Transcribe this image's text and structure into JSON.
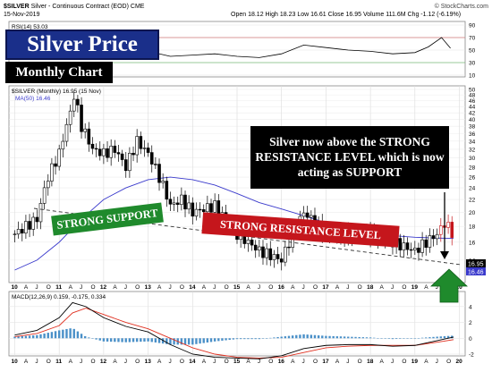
{
  "header": {
    "symbol": "$SILVER",
    "description": "Silver - Continuous Contract (EOD)",
    "exchange": "CME",
    "date": "15-Nov-2019",
    "open": "Open 18.12",
    "high": "High 18.23",
    "low": "Low 16.61",
    "close": "Close 16.95",
    "volume": "Volume 111.6M",
    "chg": "Chg -1.12 (-6.19%)",
    "copyright": "© StockCharts.com"
  },
  "overlays": {
    "title": "Silver Price",
    "subtitle": "Monthly Chart",
    "note": "Silver now above the STRONG RESISTANCE LEVEL which is now acting as SUPPORT",
    "support_label": "STRONG SUPPORT",
    "resistance_label": "STRONG RESISTANCE LEVEL"
  },
  "panels": {
    "rsi_label": "RSI(14) 53.03",
    "price_label": "$SILVER (Monthly) 16.95 (15 Nov)",
    "ma_label": "MA(50) 16.46",
    "macd_label": "MACD(12,26,9) 0.159, -0.175, 0.334",
    "last_price_badge": "16.95",
    "ma_badge": "16.46"
  },
  "colors": {
    "price_bar": "#000000",
    "ma_line": "#3a3acc",
    "support_box": "#1f8a2c",
    "resistance_box": "#c5161c",
    "macd_line": "#000000",
    "signal_line": "#e03020",
    "histogram": "#4a90c8",
    "arrow": "#1f8a2c"
  },
  "chart_data": [
    {
      "type": "line",
      "title": "RSI(14) 53.03",
      "ylim": [
        10,
        90
      ],
      "yticks": [
        10,
        30,
        50,
        70,
        90
      ],
      "x": [
        2010.0,
        2010.5,
        2011.0,
        2011.3,
        2011.6,
        2012.0,
        2012.5,
        2013.0,
        2013.5,
        2014.0,
        2014.5,
        2015.0,
        2015.5,
        2016.0,
        2016.5,
        2017.0,
        2017.5,
        2018.0,
        2018.5,
        2019.0,
        2019.3,
        2019.6,
        2019.8
      ],
      "series": [
        {
          "name": "RSI(14)",
          "values": [
            63,
            66,
            74,
            80,
            70,
            60,
            55,
            48,
            40,
            42,
            44,
            40,
            38,
            44,
            58,
            54,
            50,
            48,
            44,
            46,
            55,
            70,
            53
          ]
        }
      ]
    },
    {
      "type": "candlestick",
      "title": "$SILVER (Monthly) 16.95 (15 Nov)",
      "ylim": [
        12,
        50
      ],
      "log_scale": true,
      "yticks": [
        14,
        16,
        18,
        20,
        22,
        24,
        26,
        28,
        30,
        32,
        34,
        36,
        38,
        40,
        42,
        44,
        46,
        48,
        50
      ],
      "xticks": [
        "10",
        "A",
        "J",
        "O",
        "11",
        "A",
        "J",
        "O",
        "12",
        "A",
        "J",
        "O",
        "13",
        "A",
        "J",
        "O",
        "14",
        "A",
        "J",
        "O",
        "15",
        "A",
        "J",
        "O",
        "16",
        "A",
        "J",
        "O",
        "17",
        "A",
        "J",
        "O",
        "18",
        "A",
        "J",
        "O",
        "19",
        "A",
        "J",
        "O",
        "20"
      ],
      "x_years": [
        2010,
        2011,
        2012,
        2013,
        2014,
        2015,
        2016,
        2017,
        2018,
        2019,
        2020
      ],
      "series": [
        {
          "name": "close",
          "x": [
            2010.0,
            2010.25,
            2010.5,
            2010.75,
            2011.0,
            2011.25,
            2011.33,
            2011.5,
            2011.75,
            2012.0,
            2012.25,
            2012.5,
            2012.75,
            2013.0,
            2013.25,
            2013.5,
            2013.75,
            2014.0,
            2014.5,
            2015.0,
            2015.5,
            2016.0,
            2016.5,
            2017.0,
            2017.5,
            2018.0,
            2018.5,
            2019.0,
            2019.5,
            2019.67,
            2019.87
          ],
          "values": [
            17,
            18,
            19,
            26,
            31,
            42,
            48,
            38,
            32,
            31,
            32,
            28,
            34,
            31,
            26,
            21,
            22,
            20,
            21,
            17,
            15,
            14,
            20,
            17,
            17,
            17,
            16,
            15,
            17,
            18.5,
            16.95
          ]
        },
        {
          "name": "MA(50)",
          "x": [
            2010.0,
            2010.5,
            2011.0,
            2011.5,
            2012.0,
            2012.5,
            2013.0,
            2013.5,
            2014.0,
            2014.5,
            2015.0,
            2015.5,
            2016.0,
            2016.5,
            2017.0,
            2017.5,
            2018.0,
            2018.5,
            2019.0,
            2019.5,
            2019.87
          ],
          "values": [
            13,
            14,
            16,
            19,
            22,
            24,
            25.5,
            26,
            25.5,
            24.5,
            23,
            21.5,
            20.5,
            19.5,
            18.5,
            17.8,
            17.2,
            16.8,
            16.6,
            16.5,
            16.46
          ]
        }
      ],
      "annotations": [
        "Silver now above the STRONG RESISTANCE LEVEL which is now acting as SUPPORT",
        "STRONG SUPPORT",
        "STRONG RESISTANCE LEVEL"
      ]
    },
    {
      "type": "line",
      "title": "MACD(12,26,9) 0.159, -0.175, 0.334",
      "ylim": [
        -2,
        5
      ],
      "yticks": [
        -2,
        0,
        2,
        4
      ],
      "x": [
        2010.0,
        2010.5,
        2011.0,
        2011.3,
        2011.6,
        2012.0,
        2012.5,
        2013.0,
        2013.5,
        2014.0,
        2014.5,
        2015.0,
        2015.5,
        2016.0,
        2016.5,
        2017.0,
        2017.5,
        2018.0,
        2018.5,
        2019.0,
        2019.5,
        2019.87
      ],
      "series": [
        {
          "name": "MACD",
          "values": [
            0.4,
            1.0,
            2.6,
            4.5,
            4.0,
            2.6,
            1.5,
            0.8,
            -0.8,
            -2.0,
            -2.4,
            -2.5,
            -2.6,
            -2.2,
            -1.3,
            -0.9,
            -0.8,
            -0.8,
            -1.0,
            -0.9,
            -0.3,
            0.159
          ]
        },
        {
          "name": "Signal",
          "values": [
            0.2,
            0.6,
            1.6,
            3.2,
            3.8,
            3.0,
            2.0,
            1.2,
            0.0,
            -1.2,
            -2.0,
            -2.4,
            -2.5,
            -2.4,
            -1.8,
            -1.2,
            -1.0,
            -0.9,
            -0.9,
            -0.9,
            -0.5,
            -0.175
          ]
        },
        {
          "name": "Histogram",
          "values": [
            0.2,
            0.4,
            1.0,
            1.3,
            0.2,
            -0.4,
            -0.5,
            -0.4,
            -0.8,
            -0.8,
            -0.4,
            -0.1,
            -0.1,
            0.2,
            0.5,
            0.3,
            0.2,
            0.1,
            -0.1,
            0.0,
            0.2,
            0.334
          ]
        }
      ]
    }
  ]
}
